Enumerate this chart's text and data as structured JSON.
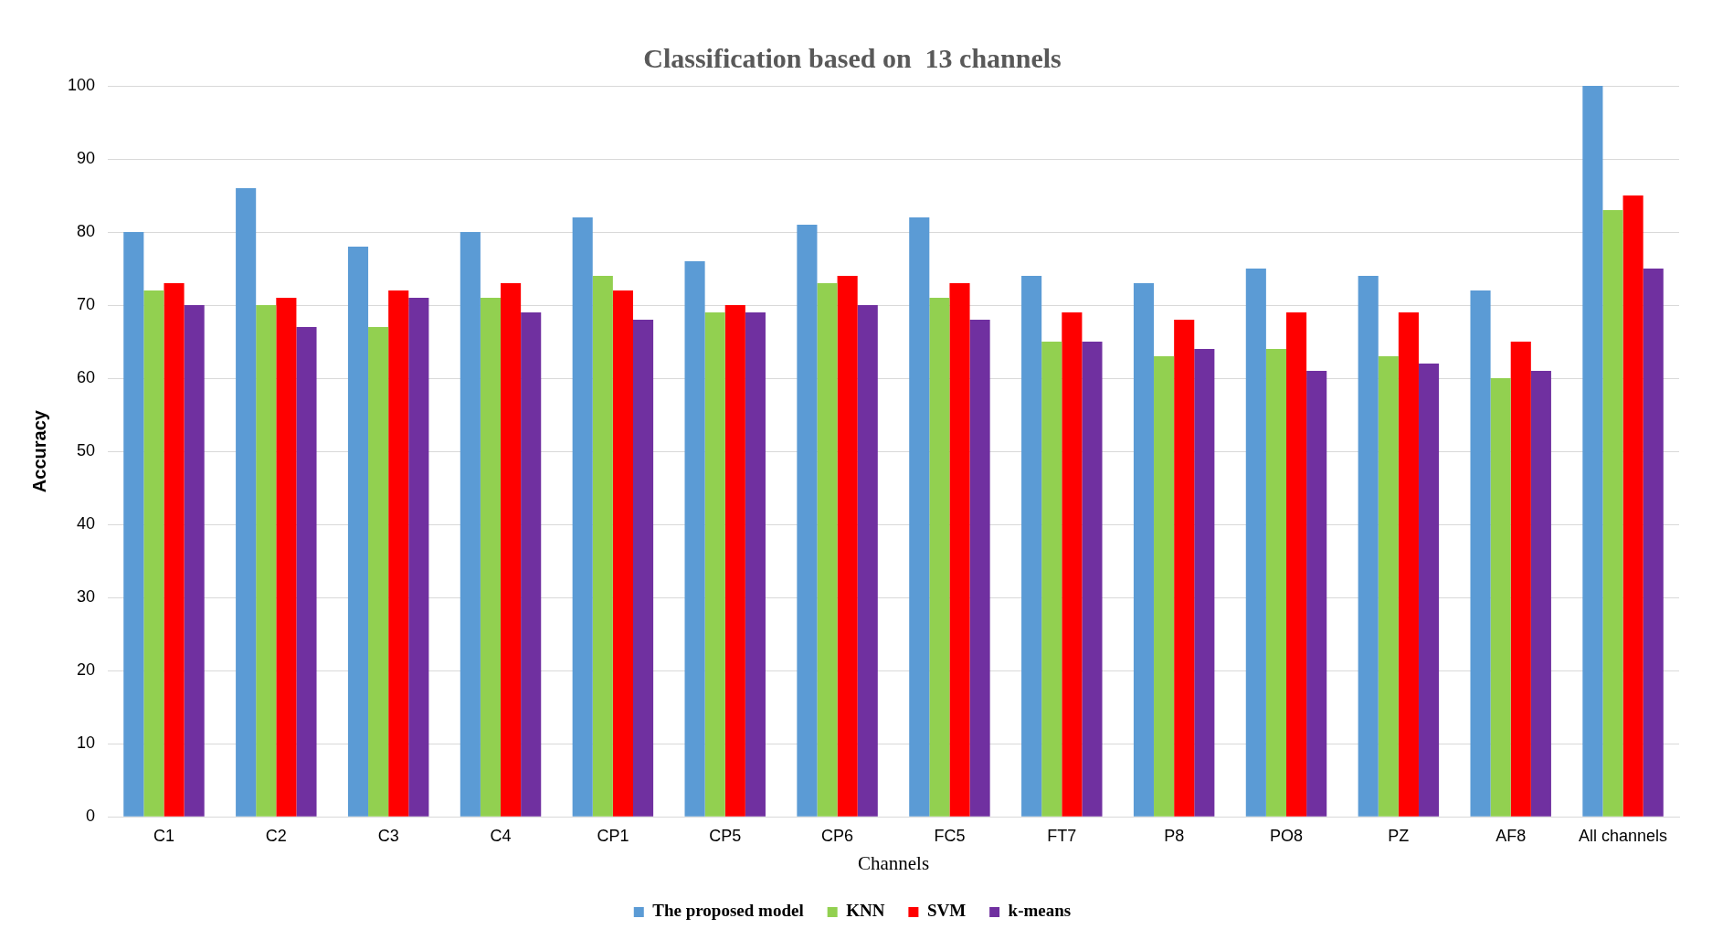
{
  "chart_data": {
    "type": "bar",
    "title": "Classification based on  13 channels",
    "xlabel": "Channels",
    "ylabel": "Accuracy",
    "categories": [
      "C1",
      "C2",
      "C3",
      "C4",
      "CP1",
      "CP5",
      "CP6",
      "FC5",
      "FT7",
      "P8",
      "PO8",
      "PZ",
      "AF8",
      "All channels"
    ],
    "series": [
      {
        "name": "The proposed model",
        "color": "#5b9bd5",
        "values": [
          80,
          86,
          78,
          80,
          82,
          76,
          81,
          82,
          74,
          73,
          75,
          74,
          72,
          100
        ]
      },
      {
        "name": "KNN",
        "color": "#92d050",
        "values": [
          72,
          70,
          67,
          71,
          74,
          69,
          73,
          71,
          65,
          63,
          64,
          63,
          60,
          83
        ]
      },
      {
        "name": "SVM",
        "color": "#ff0000",
        "values": [
          73,
          71,
          72,
          73,
          72,
          70,
          74,
          73,
          69,
          68,
          69,
          69,
          65,
          85
        ]
      },
      {
        "name": "k-means",
        "color": "#7030a0",
        "values": [
          70,
          67,
          71,
          69,
          68,
          69,
          70,
          68,
          65,
          64,
          61,
          62,
          61,
          75
        ]
      }
    ],
    "ylim": [
      0,
      100
    ],
    "yticks": [
      0,
      10,
      20,
      30,
      40,
      50,
      60,
      70,
      80,
      90,
      100
    ],
    "grid": "y",
    "legend": "bottom"
  }
}
